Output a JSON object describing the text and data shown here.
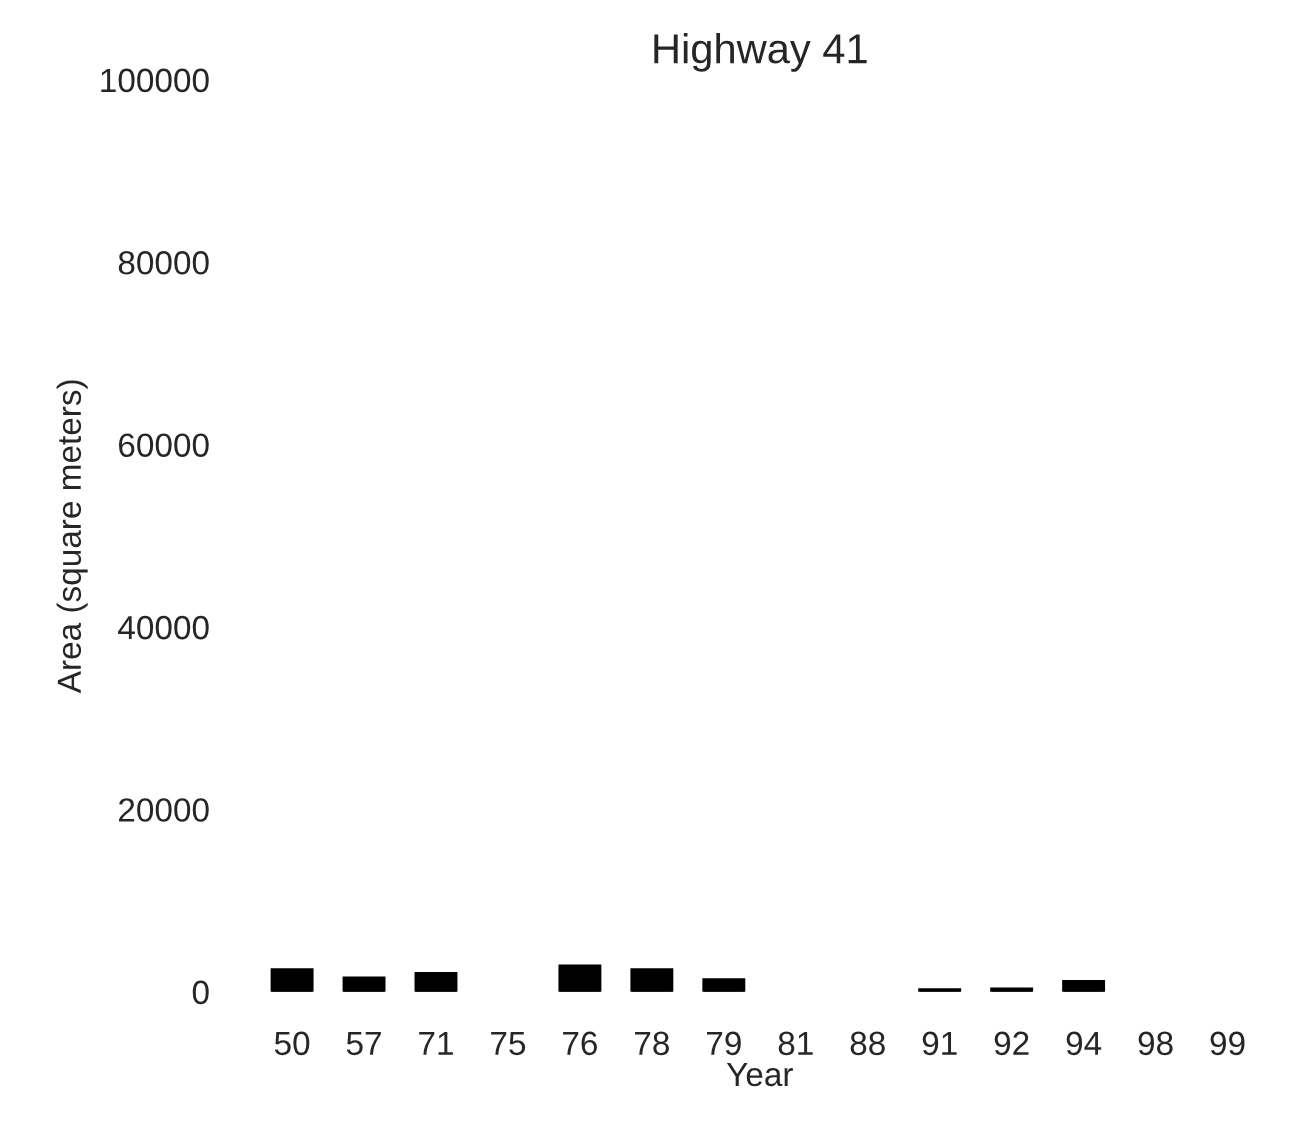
{
  "chart_data": {
    "type": "bar",
    "title": "Highway 41",
    "xlabel": "Year",
    "ylabel": "Area (square meters)",
    "categories": [
      "50",
      "57",
      "71",
      "75",
      "76",
      "78",
      "79",
      "81",
      "88",
      "91",
      "92",
      "94",
      "98",
      "99"
    ],
    "series": [
      {
        "color": "#000000",
        "values": [
          2400,
          1500,
          2000,
          null,
          2800,
          2400,
          1300,
          null,
          null,
          200,
          300,
          1100,
          null,
          null
        ]
      }
    ],
    "ylim": [
      0,
      100000
    ],
    "yticks": [
      0,
      20000,
      40000,
      60000,
      80000,
      100000
    ],
    "grid": false
  }
}
